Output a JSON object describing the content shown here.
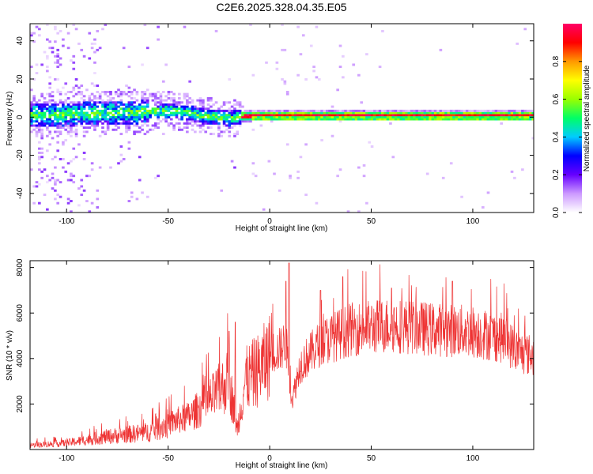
{
  "title": "C2E6.2025.328.04.35.E05",
  "chart_data": [
    {
      "type": "heatmap",
      "title": "",
      "xlabel": "Height of straight line (km)",
      "ylabel": "Frequency (Hz)",
      "xlim": [
        -118,
        130
      ],
      "ylim": [
        -50,
        49
      ],
      "xticks": [
        -100,
        -50,
        0,
        50,
        100
      ],
      "yticks": [
        -40,
        -20,
        0,
        20,
        40
      ],
      "grid": false,
      "colorbar": {
        "label": "Normalized spectral amplitude",
        "range": [
          0,
          1
        ],
        "ticks": [
          "0.0",
          "0.2",
          "0.4",
          "0.6",
          "0.8"
        ],
        "tick_values": [
          0,
          0.2,
          0.4,
          0.6,
          0.8
        ],
        "colormap": [
          "#ffffff",
          "#cc99ff",
          "#6600ff",
          "#0000ff",
          "#00ccff",
          "#00ff66",
          "#99ff00",
          "#ffff00",
          "#ff9900",
          "#ff0000",
          "#ff0066"
        ]
      },
      "ridge": [
        {
          "x": -115,
          "f": 0.5
        },
        {
          "x": -100,
          "f": 1.0
        },
        {
          "x": -85,
          "f": 1.5
        },
        {
          "x": -70,
          "f": 2.0
        },
        {
          "x": -60,
          "f": 2.5
        },
        {
          "x": -50,
          "f": 3.0
        },
        {
          "x": -40,
          "f": 1.5
        },
        {
          "x": -30,
          "f": -0.5
        },
        {
          "x": -20,
          "f": -1.0
        },
        {
          "x": -10,
          "f": 0.3
        },
        {
          "x": 0,
          "f": 0.5
        },
        {
          "x": 10,
          "f": 0.5
        },
        {
          "x": 50,
          "f": 0.5
        },
        {
          "x": 130,
          "f": 0.5
        }
      ]
    },
    {
      "type": "line",
      "title": "",
      "xlabel": "Height of straight line (km)",
      "ylabel": "SNR (10 * v/v)",
      "xlim": [
        -118,
        130
      ],
      "ylim": [
        0,
        8300
      ],
      "xticks": [
        -100,
        -50,
        0,
        50,
        100
      ],
      "yticks": [
        2000,
        4000,
        6000,
        8000
      ],
      "grid": false,
      "color": "#ee3333",
      "envelope": [
        {
          "x": -118,
          "y": 200
        },
        {
          "x": -100,
          "y": 300
        },
        {
          "x": -80,
          "y": 600
        },
        {
          "x": -60,
          "y": 800
        },
        {
          "x": -50,
          "y": 1200
        },
        {
          "x": -40,
          "y": 1500
        },
        {
          "x": -30,
          "y": 2200
        },
        {
          "x": -25,
          "y": 2700
        },
        {
          "x": -20,
          "y": 3200
        },
        {
          "x": -16,
          "y": 900
        },
        {
          "x": -12,
          "y": 3200
        },
        {
          "x": -5,
          "y": 3700
        },
        {
          "x": 0,
          "y": 4300
        },
        {
          "x": 5,
          "y": 4500
        },
        {
          "x": 8,
          "y": 4800
        },
        {
          "x": 11,
          "y": 2200
        },
        {
          "x": 15,
          "y": 3800
        },
        {
          "x": 25,
          "y": 4800
        },
        {
          "x": 40,
          "y": 5400
        },
        {
          "x": 60,
          "y": 5600
        },
        {
          "x": 80,
          "y": 5400
        },
        {
          "x": 100,
          "y": 5300
        },
        {
          "x": 115,
          "y": 5000
        },
        {
          "x": 122,
          "y": 4400
        },
        {
          "x": 130,
          "y": 4200
        }
      ],
      "peaks": [
        {
          "x": -20,
          "y": 5200
        },
        {
          "x": -17,
          "y": 5600
        },
        {
          "x": 8,
          "y": 7400
        },
        {
          "x": 9.5,
          "y": 8200
        },
        {
          "x": 25,
          "y": 7000
        },
        {
          "x": 36,
          "y": 7600
        },
        {
          "x": 60,
          "y": 7100
        },
        {
          "x": 90,
          "y": 7400
        }
      ]
    }
  ]
}
